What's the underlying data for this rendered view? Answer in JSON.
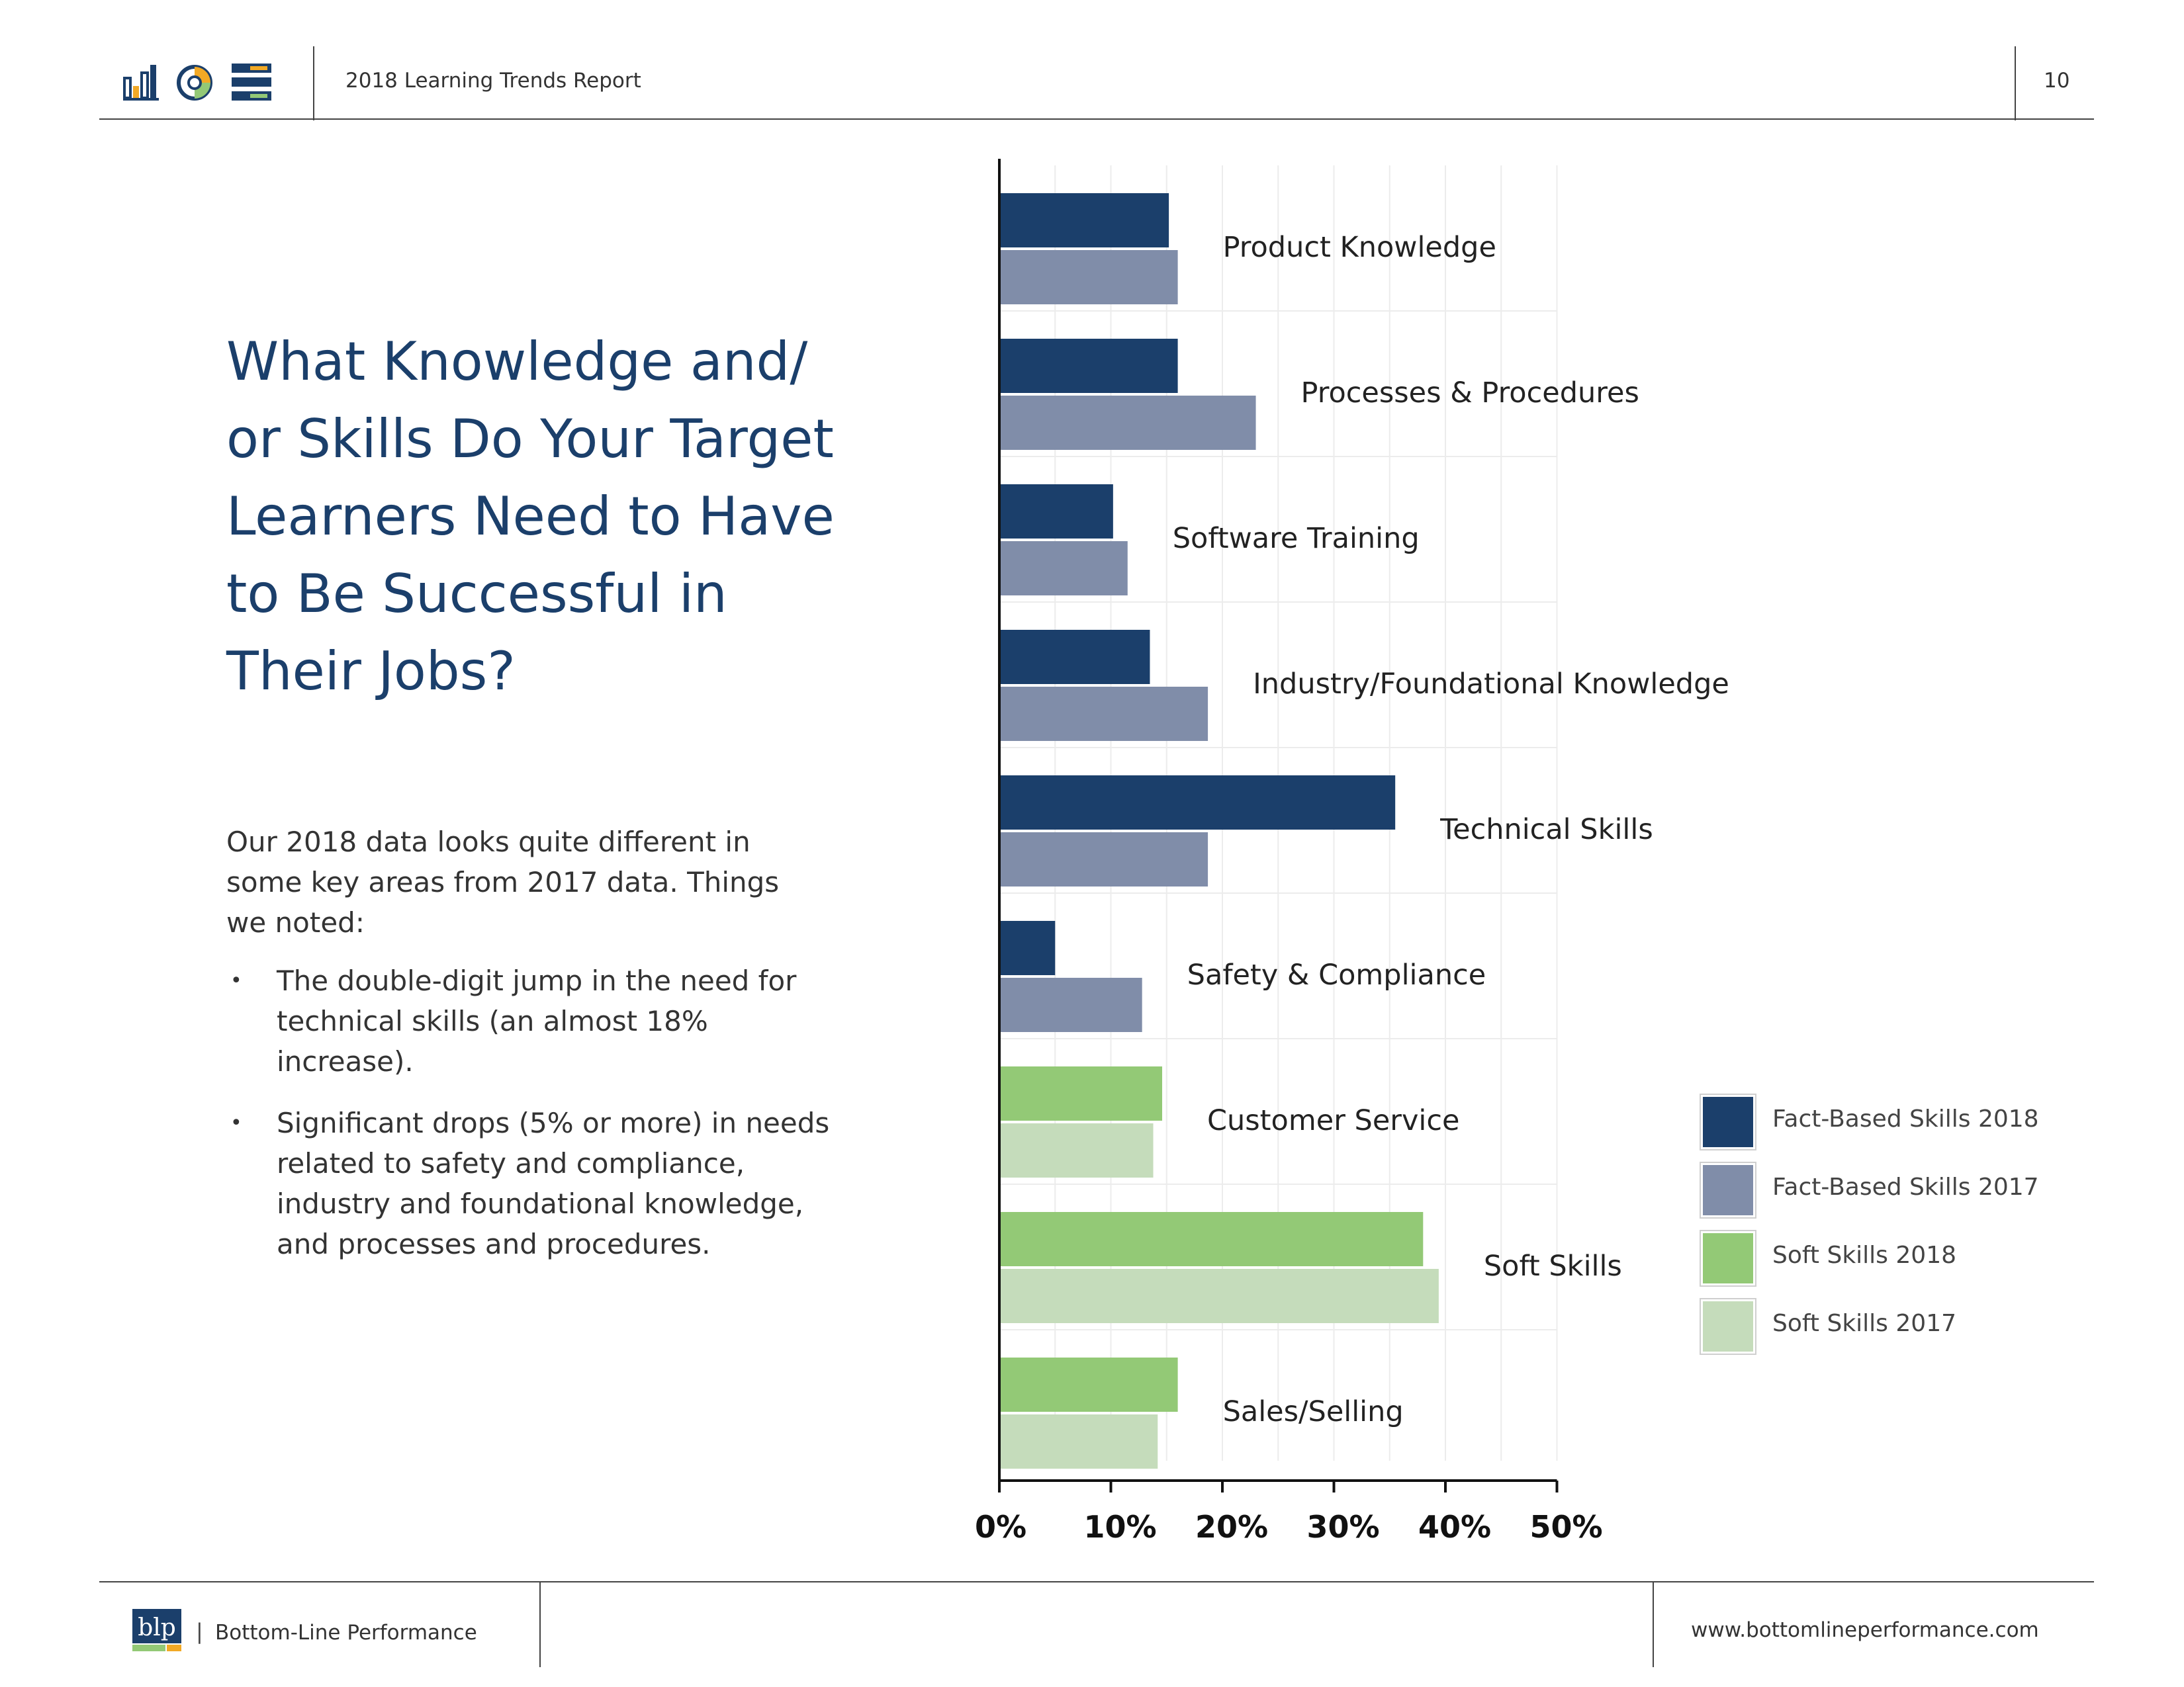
{
  "header": {
    "report_title": "2018 Learning Trends Report",
    "page_number": "10"
  },
  "question": {
    "title_lines": [
      "What Knowledge and/",
      "or Skills Do Your Target",
      "Learners Need to Have",
      "to Be Successful in",
      "Their Jobs?"
    ]
  },
  "body": {
    "intro": "Our 2018 data looks quite different in some key areas from 2017 data. Things we noted:",
    "bullets": [
      "The double-digit jump in the need for technical skills (an almost 18% increase).",
      "Significant drops (5% or more) in needs related to safety and compliance, industry and foundational knowledge, and processes and procedures."
    ]
  },
  "colors": {
    "fact_2018": "#1b3f6b",
    "fact_2017": "#808da9",
    "soft_2018": "#93c976",
    "soft_2017": "#c5dcbb",
    "title": "#1b3f6b"
  },
  "chart_data": {
    "type": "bar",
    "orientation": "horizontal",
    "categories": [
      "Product Knowledge",
      "Processes & Procedures",
      "Software Training",
      "Industry/Foundational Knowledge",
      "Technical Skills",
      "Safety & Compliance",
      "Customer Service",
      "Soft Skills",
      "Sales/Selling"
    ],
    "bars": [
      {
        "category": "Product Knowledge",
        "y2018": 15.2,
        "y2017": 16.0,
        "group": "fact"
      },
      {
        "category": "Processes & Procedures",
        "y2018": 16.0,
        "y2017": 23.0,
        "group": "fact"
      },
      {
        "category": "Software Training",
        "y2018": 10.2,
        "y2017": 11.5,
        "group": "fact"
      },
      {
        "category": "Industry/Foundational Knowledge",
        "y2018": 13.5,
        "y2017": 18.7,
        "group": "fact"
      },
      {
        "category": "Technical Skills",
        "y2018": 35.5,
        "y2017": 18.7,
        "group": "fact"
      },
      {
        "category": "Safety & Compliance",
        "y2018": 5.0,
        "y2017": 12.8,
        "group": "fact"
      },
      {
        "category": "Customer Service",
        "y2018": 14.6,
        "y2017": 13.8,
        "group": "soft"
      },
      {
        "category": "Soft Skills",
        "y2018": 38.0,
        "y2017": 39.4,
        "group": "soft"
      },
      {
        "category": "Sales/Selling",
        "y2018": 16.0,
        "y2017": 14.2,
        "group": "soft"
      }
    ],
    "xlim": [
      0,
      50
    ],
    "x_ticks": [
      "0%",
      "10%",
      "20%",
      "30%",
      "40%",
      "50%"
    ],
    "grid": true,
    "legend_position": "right",
    "legend": [
      {
        "name": "Fact-Based Skills 2018",
        "color": "#1b3f6b"
      },
      {
        "name": "Fact-Based Skills 2017",
        "color": "#808da9"
      },
      {
        "name": "Soft Skills 2018",
        "color": "#93c976"
      },
      {
        "name": "Soft Skills 2017",
        "color": "#c5dcbb"
      }
    ]
  },
  "footer": {
    "logo_text": "blp",
    "separator": "|",
    "company": "Bottom-Line Performance",
    "url": "www.bottomlineperformance.com"
  }
}
